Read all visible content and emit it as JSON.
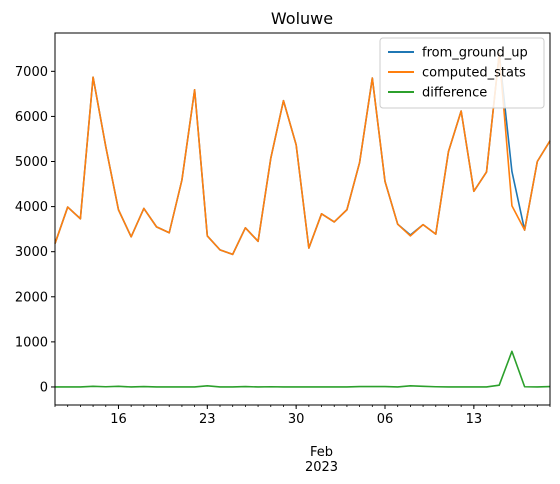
{
  "chart_data": {
    "type": "line",
    "title": "Woluwe",
    "xlabel": "",
    "ylabel": "",
    "x": [
      "2023-01-11",
      "2023-01-12",
      "2023-01-13",
      "2023-01-14",
      "2023-01-15",
      "2023-01-16",
      "2023-01-17",
      "2023-01-18",
      "2023-01-19",
      "2023-01-20",
      "2023-01-21",
      "2023-01-22",
      "2023-01-23",
      "2023-01-24",
      "2023-01-25",
      "2023-01-26",
      "2023-01-27",
      "2023-01-28",
      "2023-01-29",
      "2023-01-30",
      "2023-01-31",
      "2023-02-01",
      "2023-02-02",
      "2023-02-03",
      "2023-02-04",
      "2023-02-05",
      "2023-02-06",
      "2023-02-07",
      "2023-02-08",
      "2023-02-09",
      "2023-02-10",
      "2023-02-11",
      "2023-02-12",
      "2023-02-13",
      "2023-02-14",
      "2023-02-15",
      "2023-02-16",
      "2023-02-17",
      "2023-02-18",
      "2023-02-19"
    ],
    "xlim": [
      "2023-01-11",
      "2023-02-19"
    ],
    "ylim": [
      -400,
      7850
    ],
    "y_ticks": [
      0,
      1000,
      2000,
      3000,
      4000,
      5000,
      6000,
      7000
    ],
    "x_ticks": [
      {
        "date": "2023-01-16",
        "label": "16"
      },
      {
        "date": "2023-01-23",
        "label": "23"
      },
      {
        "date": "2023-01-30",
        "label": "30"
      },
      {
        "date": "2023-02-06",
        "label": "06"
      },
      {
        "date": "2023-02-13",
        "label": "13"
      }
    ],
    "x_secondary_label": [
      "Feb",
      "2023"
    ],
    "grid": false,
    "legend_position": "top-right",
    "series": [
      {
        "name": "from_ground_up",
        "color": "#1f77b4",
        "values": [
          3180,
          3990,
          3730,
          6870,
          5330,
          3930,
          3330,
          3960,
          3550,
          3420,
          4590,
          6590,
          3350,
          3040,
          2940,
          3530,
          3230,
          5070,
          6350,
          5370,
          3080,
          3840,
          3660,
          3930,
          4980,
          6850,
          4560,
          3610,
          3370,
          3600,
          3390,
          5220,
          6120,
          4340,
          4770,
          7390,
          4780,
          3480,
          5000,
          5460
        ]
      },
      {
        "name": "computed_stats",
        "color": "#ff7f0e",
        "values": [
          3180,
          3990,
          3730,
          6870,
          5330,
          3930,
          3330,
          3960,
          3550,
          3420,
          4590,
          6590,
          3350,
          3040,
          2940,
          3530,
          3230,
          5070,
          6350,
          5370,
          3080,
          3840,
          3660,
          3930,
          4980,
          6850,
          4560,
          3610,
          3350,
          3600,
          3390,
          5220,
          6120,
          4340,
          4770,
          7390,
          4020,
          3480,
          5000,
          5460
        ]
      },
      {
        "name": "difference",
        "color": "#2ca02c",
        "values": [
          0,
          0,
          0,
          15,
          5,
          15,
          0,
          8,
          0,
          0,
          0,
          0,
          25,
          0,
          0,
          8,
          0,
          5,
          0,
          0,
          0,
          0,
          0,
          0,
          8,
          8,
          8,
          0,
          25,
          15,
          5,
          0,
          0,
          0,
          0,
          40,
          790,
          5,
          0,
          8
        ]
      }
    ]
  }
}
